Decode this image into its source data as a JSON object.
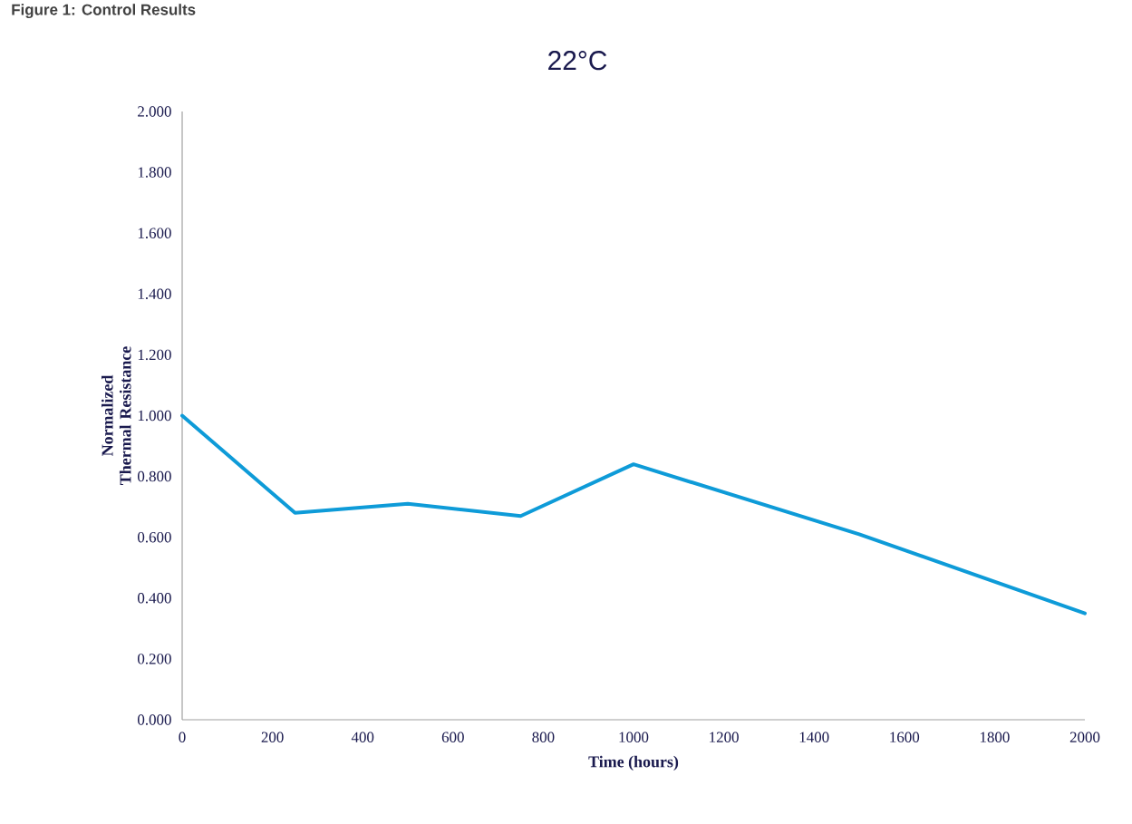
{
  "chart_data": {
    "type": "line",
    "title": "22°C",
    "xlabel": "Time (hours)",
    "ylabel": "Normalized Thermal Resistance",
    "annotations": [
      "Figure 1: Control Results"
    ],
    "x": [
      0,
      250,
      500,
      750,
      1000,
      1500,
      2000
    ],
    "series": [
      {
        "color": "#0e9bd8",
        "values": [
          1.0,
          0.68,
          0.71,
          0.67,
          0.84,
          0.61,
          0.35
        ]
      }
    ],
    "xlim": [
      0,
      2000
    ],
    "xticks": [
      0,
      200,
      400,
      600,
      800,
      1000,
      1200,
      1400,
      1600,
      1800,
      2000
    ],
    "ylim": [
      0,
      2
    ],
    "yticks": [
      {
        "value": 0,
        "label": "0.000"
      },
      {
        "value": 0.2,
        "label": "0.200"
      },
      {
        "value": 0.4,
        "label": "0.400"
      },
      {
        "value": 0.6,
        "label": "0.600"
      },
      {
        "value": 0.8,
        "label": "0.800"
      },
      {
        "value": 1.0,
        "label": "1.000"
      },
      {
        "value": 1.2,
        "label": "1.200"
      },
      {
        "value": 1.4,
        "label": "1.400"
      },
      {
        "value": 1.6,
        "label": "1.600"
      },
      {
        "value": 1.8,
        "label": "1.800"
      },
      {
        "value": 2.0,
        "label": "2.000"
      }
    ],
    "grid": false,
    "legend": false,
    "marker": "none",
    "line_style": "solid"
  }
}
